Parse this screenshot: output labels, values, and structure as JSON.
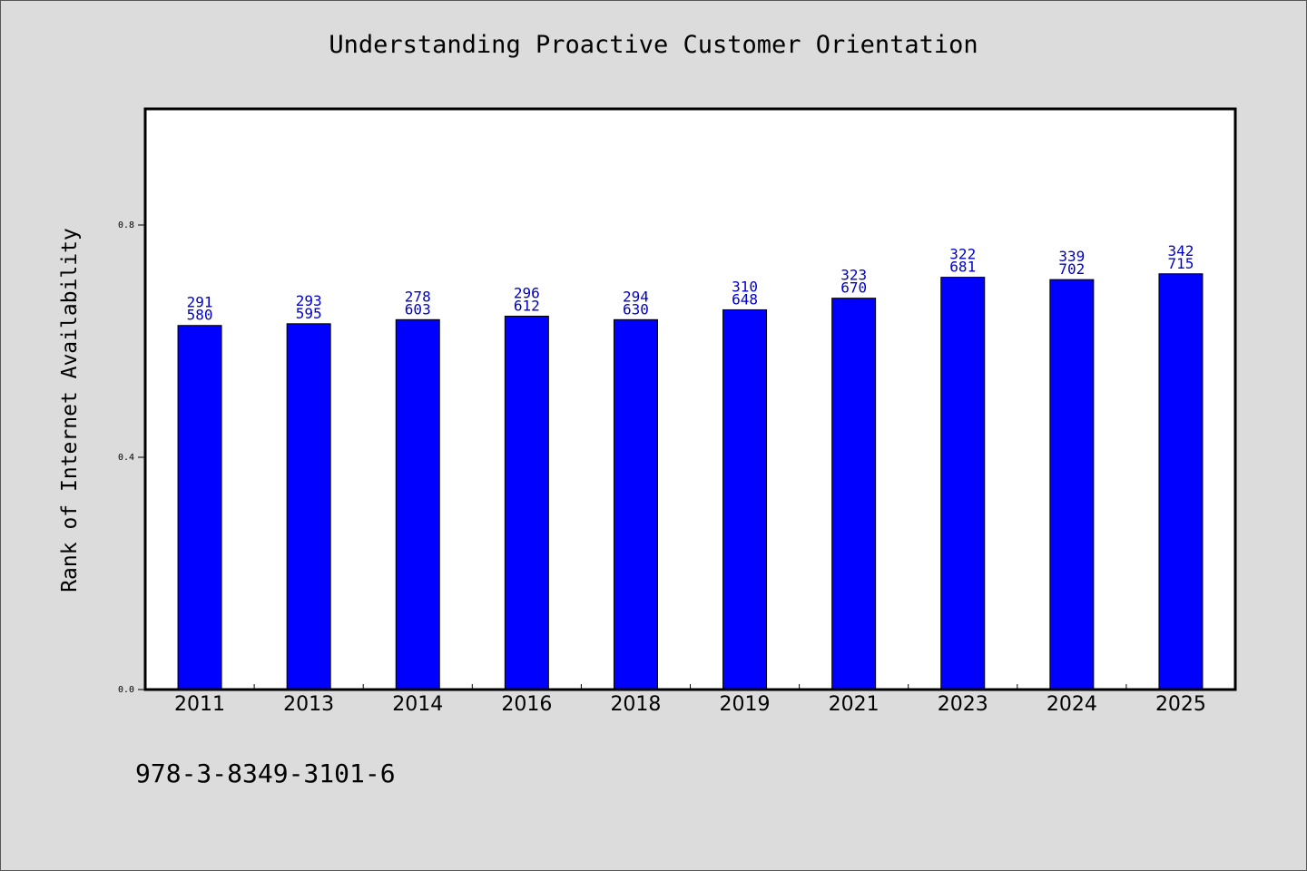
{
  "chart_data": {
    "type": "bar",
    "title": "Understanding Proactive Customer Orientation",
    "xlabel": "",
    "ylabel": "Rank of Internet Availability",
    "ylim": [
      0.0,
      1.0
    ],
    "yticks": [
      "0.0",
      "0.4",
      "0.8"
    ],
    "categories": [
      "2011",
      "2013",
      "2014",
      "2016",
      "2018",
      "2019",
      "2021",
      "2023",
      "2024",
      "2025"
    ],
    "values": [
      0.627,
      0.63,
      0.637,
      0.643,
      0.637,
      0.654,
      0.674,
      0.71,
      0.706,
      0.716
    ],
    "label_top": [
      "291",
      "293",
      "278",
      "296",
      "294",
      "310",
      "323",
      "322",
      "339",
      "342"
    ],
    "label_bottom": [
      "580",
      "595",
      "603",
      "612",
      "630",
      "648",
      "670",
      "681",
      "702",
      "715"
    ],
    "bar_color": "#0000ff",
    "label_color": "#0000cc",
    "grid": false,
    "legend": "none"
  },
  "footer": {
    "code": "978-3-8349-3101-6"
  }
}
